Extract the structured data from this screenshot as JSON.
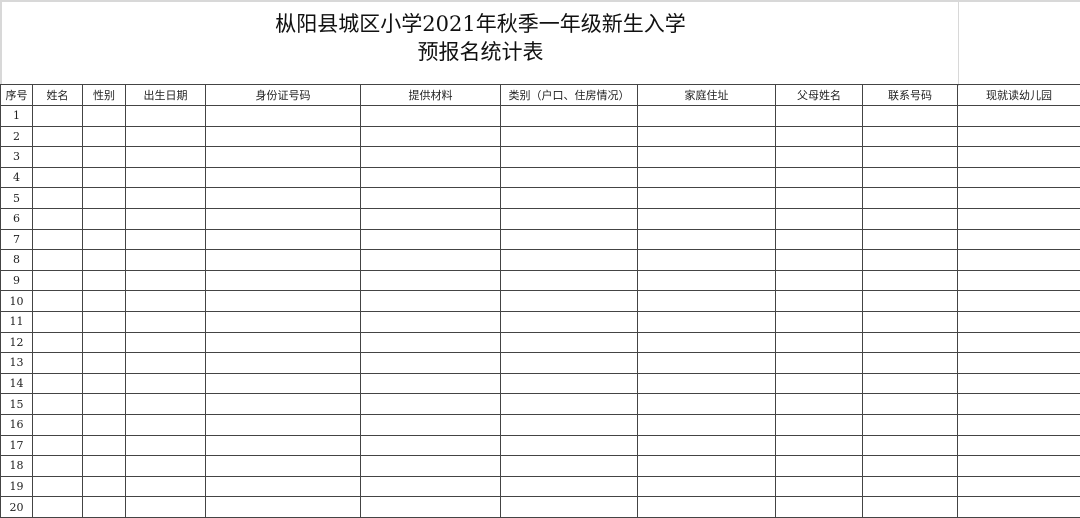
{
  "title": {
    "line1": "枞阳县城区小学2021年秋季一年级新生入学",
    "line2": "预报名统计表"
  },
  "table": {
    "columns": [
      "序号",
      "姓名",
      "性别",
      "出生日期",
      "身份证号码",
      "提供材料",
      "类别（户口、住房情况）",
      "家庭住址",
      "父母姓名",
      "联系号码",
      "现就读幼儿园"
    ],
    "row_numbers": [
      "1",
      "2",
      "3",
      "4",
      "5",
      "6",
      "7",
      "8",
      "9",
      "10",
      "11",
      "12",
      "13",
      "14",
      "15",
      "16",
      "17",
      "18",
      "19",
      "20"
    ]
  }
}
